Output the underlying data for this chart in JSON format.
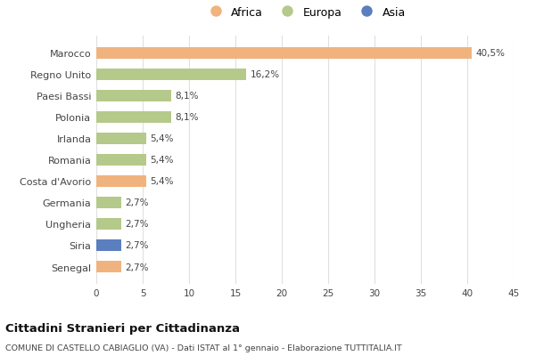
{
  "categories": [
    "Senegal",
    "Siria",
    "Ungheria",
    "Germania",
    "Costa d'Avorio",
    "Romania",
    "Irlanda",
    "Polonia",
    "Paesi Bassi",
    "Regno Unito",
    "Marocco"
  ],
  "values": [
    2.7,
    2.7,
    2.7,
    2.7,
    5.4,
    5.4,
    5.4,
    8.1,
    8.1,
    16.2,
    40.5
  ],
  "labels": [
    "2,7%",
    "2,7%",
    "2,7%",
    "2,7%",
    "5,4%",
    "5,4%",
    "5,4%",
    "8,1%",
    "8,1%",
    "16,2%",
    "40,5%"
  ],
  "colors": [
    "#f0b37e",
    "#5b7fbe",
    "#b5c98a",
    "#b5c98a",
    "#f0b37e",
    "#b5c98a",
    "#b5c98a",
    "#b5c98a",
    "#b5c98a",
    "#b5c98a",
    "#f0b37e"
  ],
  "legend": [
    {
      "label": "Africa",
      "color": "#f0b37e"
    },
    {
      "label": "Europa",
      "color": "#b5c98a"
    },
    {
      "label": "Asia",
      "color": "#5b7fbe"
    }
  ],
  "title": "Cittadini Stranieri per Cittadinanza",
  "subtitle": "COMUNE DI CASTELLO CABIAGLIO (VA) - Dati ISTAT al 1° gennaio - Elaborazione TUTTITALIA.IT",
  "xlim": [
    0,
    45
  ],
  "xticks": [
    0,
    5,
    10,
    15,
    20,
    25,
    30,
    35,
    40,
    45
  ],
  "bg_color": "#ffffff",
  "grid_color": "#e0e0e0",
  "bar_height": 0.55
}
